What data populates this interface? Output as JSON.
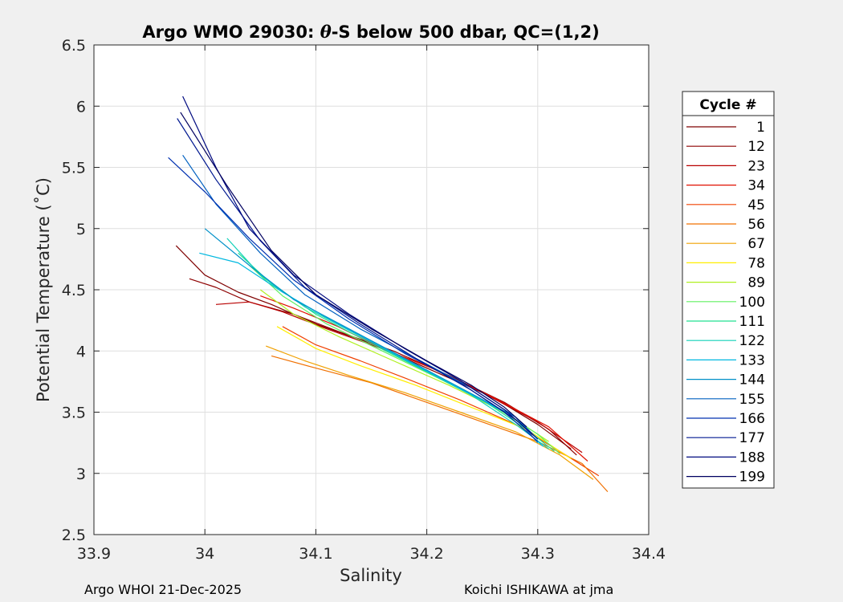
{
  "chart_data": {
    "type": "line",
    "title_prefix": "Argo WMO 29030: ",
    "title_theta": "θ",
    "title_suffix": "-S below 500 dbar,  QC=(1,2)",
    "xlabel": "Salinity",
    "ylabel": "Potential Temperature (˚C)",
    "xlim": [
      33.9,
      34.4
    ],
    "ylim": [
      2.5,
      6.5
    ],
    "xticks": [
      "33.9",
      "34",
      "34.1",
      "34.2",
      "34.3",
      "34.4"
    ],
    "yticks": [
      "2.5",
      "3",
      "3.5",
      "4",
      "4.5",
      "5",
      "5.5",
      "6",
      "6.5"
    ],
    "grid": true,
    "legend_title": "Cycle #",
    "legend_position": "right",
    "legend": [
      {
        "label": "1",
        "color": "#7f0000"
      },
      {
        "label": "12",
        "color": "#8e0000"
      },
      {
        "label": "23",
        "color": "#b80000"
      },
      {
        "label": "34",
        "color": "#e01000"
      },
      {
        "label": "45",
        "color": "#f04000"
      },
      {
        "label": "56",
        "color": "#f07000"
      },
      {
        "label": "67",
        "color": "#f0a000"
      },
      {
        "label": "78",
        "color": "#ffee00"
      },
      {
        "label": "89",
        "color": "#b0f020"
      },
      {
        "label": "100",
        "color": "#60f060"
      },
      {
        "label": "111",
        "color": "#20e090"
      },
      {
        "label": "122",
        "color": "#10d0b8"
      },
      {
        "label": "133",
        "color": "#00b8e0"
      },
      {
        "label": "144",
        "color": "#0090c8"
      },
      {
        "label": "155",
        "color": "#0060c0"
      },
      {
        "label": "166",
        "color": "#0030b0"
      },
      {
        "label": "177",
        "color": "#001890"
      },
      {
        "label": "188",
        "color": "#000a80"
      },
      {
        "label": "199",
        "color": "#000060"
      }
    ],
    "series": [
      {
        "name": "1",
        "color": "#7f0000",
        "x": [
          33.974,
          34.0,
          34.03,
          34.06,
          34.1,
          34.15,
          34.2,
          34.26,
          34.3,
          34.33
        ],
        "y": [
          4.86,
          4.62,
          4.48,
          4.38,
          4.22,
          4.06,
          3.86,
          3.62,
          3.4,
          3.2
        ]
      },
      {
        "name": "12",
        "color": "#8e0000",
        "x": [
          33.986,
          34.01,
          34.04,
          34.08,
          34.12,
          34.17,
          34.22,
          34.27,
          34.31,
          34.335
        ],
        "y": [
          4.59,
          4.52,
          4.4,
          4.3,
          4.16,
          4.0,
          3.8,
          3.58,
          3.36,
          3.15
        ]
      },
      {
        "name": "23",
        "color": "#b80000",
        "x": [
          34.01,
          34.04,
          34.07,
          34.11,
          34.15,
          34.2,
          34.25,
          34.3,
          34.34
        ],
        "y": [
          4.38,
          4.4,
          4.32,
          4.18,
          4.05,
          3.88,
          3.66,
          3.42,
          3.17
        ]
      },
      {
        "name": "34",
        "color": "#e01000",
        "x": [
          34.05,
          34.08,
          34.12,
          34.16,
          34.21,
          34.26,
          34.31,
          34.345
        ],
        "y": [
          4.45,
          4.35,
          4.2,
          4.02,
          3.84,
          3.62,
          3.38,
          3.1
        ]
      },
      {
        "name": "45",
        "color": "#f04000",
        "x": [
          34.07,
          34.1,
          34.14,
          34.18,
          34.23,
          34.28,
          34.32,
          34.355
        ],
        "y": [
          4.2,
          4.05,
          3.92,
          3.78,
          3.6,
          3.4,
          3.18,
          2.98
        ]
      },
      {
        "name": "56",
        "color": "#f07000",
        "x": [
          34.06,
          34.1,
          34.15,
          34.2,
          34.25,
          34.3,
          34.34,
          34.363
        ],
        "y": [
          3.96,
          3.86,
          3.74,
          3.58,
          3.42,
          3.26,
          3.08,
          2.85
        ]
      },
      {
        "name": "67",
        "color": "#f0a000",
        "x": [
          34.055,
          34.09,
          34.13,
          34.18,
          34.23,
          34.28,
          34.32,
          34.35
        ],
        "y": [
          4.04,
          3.92,
          3.8,
          3.66,
          3.5,
          3.34,
          3.15,
          2.95
        ]
      },
      {
        "name": "78",
        "color": "#ffee00",
        "x": [
          34.065,
          34.1,
          34.14,
          34.19,
          34.24,
          34.29,
          34.33
        ],
        "y": [
          4.2,
          4.02,
          3.88,
          3.72,
          3.54,
          3.36,
          3.12
        ]
      },
      {
        "name": "89",
        "color": "#b0f020",
        "x": [
          34.05,
          34.08,
          34.12,
          34.17,
          34.22,
          34.27,
          34.31
        ],
        "y": [
          4.5,
          4.3,
          4.12,
          3.92,
          3.72,
          3.5,
          3.26
        ]
      },
      {
        "name": "100",
        "color": "#60f060",
        "x": [
          34.04,
          34.07,
          34.11,
          34.16,
          34.21,
          34.26,
          34.3,
          34.32
        ],
        "y": [
          4.7,
          4.45,
          4.22,
          4.0,
          3.78,
          3.55,
          3.32,
          3.16
        ]
      },
      {
        "name": "111",
        "color": "#20e090",
        "x": [
          34.03,
          34.06,
          34.1,
          34.15,
          34.2,
          34.25,
          34.29,
          34.315
        ],
        "y": [
          4.8,
          4.55,
          4.3,
          4.06,
          3.83,
          3.6,
          3.36,
          3.18
        ]
      },
      {
        "name": "122",
        "color": "#10d0b8",
        "x": [
          34.02,
          34.05,
          34.09,
          34.14,
          34.19,
          34.24,
          34.28,
          34.31
        ],
        "y": [
          4.92,
          4.62,
          4.36,
          4.12,
          3.88,
          3.64,
          3.4,
          3.2
        ]
      },
      {
        "name": "133",
        "color": "#00b8e0",
        "x": [
          33.995,
          34.03,
          34.07,
          34.12,
          34.17,
          34.22,
          34.27,
          34.305
        ],
        "y": [
          4.8,
          4.72,
          4.48,
          4.22,
          3.98,
          3.74,
          3.5,
          3.22
        ]
      },
      {
        "name": "144",
        "color": "#0090c8",
        "x": [
          34.0,
          34.04,
          34.08,
          34.13,
          34.18,
          34.23,
          34.28,
          34.3
        ],
        "y": [
          5.0,
          4.7,
          4.42,
          4.18,
          3.94,
          3.7,
          3.46,
          3.25
        ]
      },
      {
        "name": "155",
        "color": "#0060c0",
        "x": [
          33.98,
          34.01,
          34.05,
          34.09,
          34.14,
          34.19,
          34.24,
          34.28,
          34.3
        ],
        "y": [
          5.6,
          5.2,
          4.8,
          4.46,
          4.18,
          3.94,
          3.7,
          3.46,
          3.28
        ]
      },
      {
        "name": "166",
        "color": "#0030b0",
        "x": [
          33.967,
          34.0,
          34.04,
          34.08,
          34.13,
          34.18,
          34.23,
          34.27,
          34.3
        ],
        "y": [
          5.58,
          5.3,
          4.92,
          4.58,
          4.26,
          3.98,
          3.74,
          3.5,
          3.26
        ]
      },
      {
        "name": "177",
        "color": "#001890",
        "x": [
          33.975,
          34.01,
          34.05,
          34.09,
          34.14,
          34.19,
          34.24,
          34.28,
          34.3
        ],
        "y": [
          5.9,
          5.4,
          4.9,
          4.52,
          4.22,
          3.94,
          3.68,
          3.44,
          3.28
        ]
      },
      {
        "name": "188",
        "color": "#000a80",
        "x": [
          33.98,
          34.01,
          34.04,
          34.08,
          34.13,
          34.18,
          34.23,
          34.27,
          34.295
        ],
        "y": [
          6.08,
          5.5,
          5.0,
          4.62,
          4.3,
          4.02,
          3.76,
          3.52,
          3.32
        ]
      },
      {
        "name": "199",
        "color": "#000060",
        "x": [
          33.978,
          34.02,
          34.06,
          34.1,
          34.15,
          34.2,
          34.24,
          34.27,
          34.29
        ],
        "y": [
          5.95,
          5.35,
          4.82,
          4.46,
          4.18,
          3.92,
          3.72,
          3.54,
          3.38
        ]
      }
    ]
  },
  "footer": {
    "left": "Argo WHOI 21-Dec-2025",
    "right": "Koichi ISHIKAWA at jma"
  }
}
